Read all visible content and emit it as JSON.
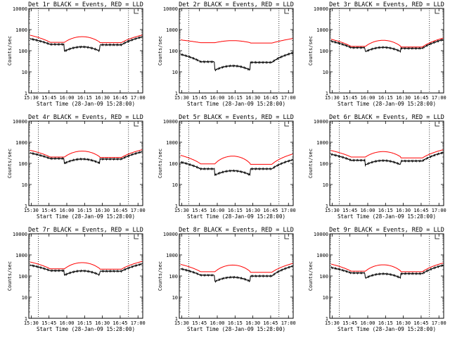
{
  "figure": {
    "title_template": "Det {n}r BLACK = Events, RED = LLD",
    "xlabel": "Start Time (28-Jan-09 15:28:00)",
    "ylabel": "Counts/sec"
  },
  "axes": {
    "x_ticks": [
      "15:30",
      "15:45",
      "16:00",
      "16:15",
      "16:30",
      "16:45",
      "17:00"
    ],
    "x_range": [
      "15:28",
      "17:04"
    ],
    "y_ticks": [
      "1",
      "10",
      "100",
      "1000",
      "10000"
    ],
    "y_range": [
      1,
      10000
    ],
    "y_scale": "log",
    "dotted_markers": [
      "15:36",
      "16:52"
    ]
  },
  "colors": {
    "events": "#000000",
    "lld": "#ff0000"
  },
  "chart_data": [
    {
      "type": "line",
      "title": "Det 1r BLACK = Events, RED = LLD",
      "ylim": [
        1,
        10000
      ],
      "y_scale": "log",
      "series": [
        {
          "name": "Events",
          "color": "#000000",
          "a": 380,
          "b": 200,
          "c": 95,
          "d": 190,
          "e": 460
        },
        {
          "name": "LLD",
          "color": "#ff0000",
          "a": 560,
          "b": 250,
          "c": 460,
          "d": 240,
          "e": 560
        }
      ]
    },
    {
      "type": "line",
      "title": "Det 2r BLACK = Events, RED = LLD",
      "ylim": [
        1,
        10000
      ],
      "y_scale": "log",
      "series": [
        {
          "name": "Events",
          "color": "#000000",
          "a": 70,
          "b": 30,
          "c": 12,
          "d": 28,
          "e": 80
        },
        {
          "name": "LLD",
          "color": "#ff0000",
          "a": 330,
          "b": 240,
          "c": 300,
          "d": 230,
          "e": 380
        }
      ]
    },
    {
      "type": "line",
      "title": "Det 3r BLACK = Events, RED = LLD",
      "ylim": [
        1,
        10000
      ],
      "y_scale": "log",
      "series": [
        {
          "name": "Events",
          "color": "#000000",
          "a": 290,
          "b": 140,
          "c": 90,
          "d": 130,
          "e": 340
        },
        {
          "name": "LLD",
          "color": "#ff0000",
          "a": 360,
          "b": 160,
          "c": 310,
          "d": 150,
          "e": 400
        }
      ]
    },
    {
      "type": "line",
      "title": "Det 4r BLACK = Events, RED = LLD",
      "ylim": [
        1,
        10000
      ],
      "y_scale": "log",
      "series": [
        {
          "name": "Events",
          "color": "#000000",
          "a": 320,
          "b": 170,
          "c": 100,
          "d": 160,
          "e": 360
        },
        {
          "name": "LLD",
          "color": "#ff0000",
          "a": 430,
          "b": 200,
          "c": 380,
          "d": 190,
          "e": 450
        }
      ]
    },
    {
      "type": "line",
      "title": "Det 5r BLACK = Events, RED = LLD",
      "ylim": [
        1,
        10000
      ],
      "y_scale": "log",
      "series": [
        {
          "name": "Events",
          "color": "#000000",
          "a": 120,
          "b": 55,
          "c": 28,
          "d": 55,
          "e": 150
        },
        {
          "name": "LLD",
          "color": "#ff0000",
          "a": 250,
          "b": 95,
          "c": 220,
          "d": 90,
          "e": 280
        }
      ]
    },
    {
      "type": "line",
      "title": "Det 6r BLACK = Events, RED = LLD",
      "ylim": [
        1,
        10000
      ],
      "y_scale": "log",
      "series": [
        {
          "name": "Events",
          "color": "#000000",
          "a": 280,
          "b": 140,
          "c": 85,
          "d": 130,
          "e": 330
        },
        {
          "name": "LLD",
          "color": "#ff0000",
          "a": 420,
          "b": 200,
          "c": 360,
          "d": 180,
          "e": 450
        }
      ]
    },
    {
      "type": "line",
      "title": "Det 7r BLACK = Events, RED = LLD",
      "ylim": [
        1,
        10000
      ],
      "y_scale": "log",
      "series": [
        {
          "name": "Events",
          "color": "#000000",
          "a": 340,
          "b": 180,
          "c": 110,
          "d": 170,
          "e": 380
        },
        {
          "name": "LLD",
          "color": "#ff0000",
          "a": 480,
          "b": 220,
          "c": 430,
          "d": 210,
          "e": 500
        }
      ]
    },
    {
      "type": "line",
      "title": "Det 8r BLACK = Events, RED = LLD",
      "ylim": [
        1,
        10000
      ],
      "y_scale": "log",
      "series": [
        {
          "name": "Events",
          "color": "#000000",
          "a": 230,
          "b": 110,
          "c": 55,
          "d": 100,
          "e": 300
        },
        {
          "name": "LLD",
          "color": "#ff0000",
          "a": 370,
          "b": 160,
          "c": 330,
          "d": 150,
          "e": 400
        }
      ]
    },
    {
      "type": "line",
      "title": "Det 9r BLACK = Events, RED = LLD",
      "ylim": [
        1,
        10000
      ],
      "y_scale": "log",
      "series": [
        {
          "name": "Events",
          "color": "#000000",
          "a": 260,
          "b": 140,
          "c": 80,
          "d": 130,
          "e": 330
        },
        {
          "name": "LLD",
          "color": "#ff0000",
          "a": 380,
          "b": 170,
          "c": 340,
          "d": 160,
          "e": 420
        }
      ]
    }
  ]
}
